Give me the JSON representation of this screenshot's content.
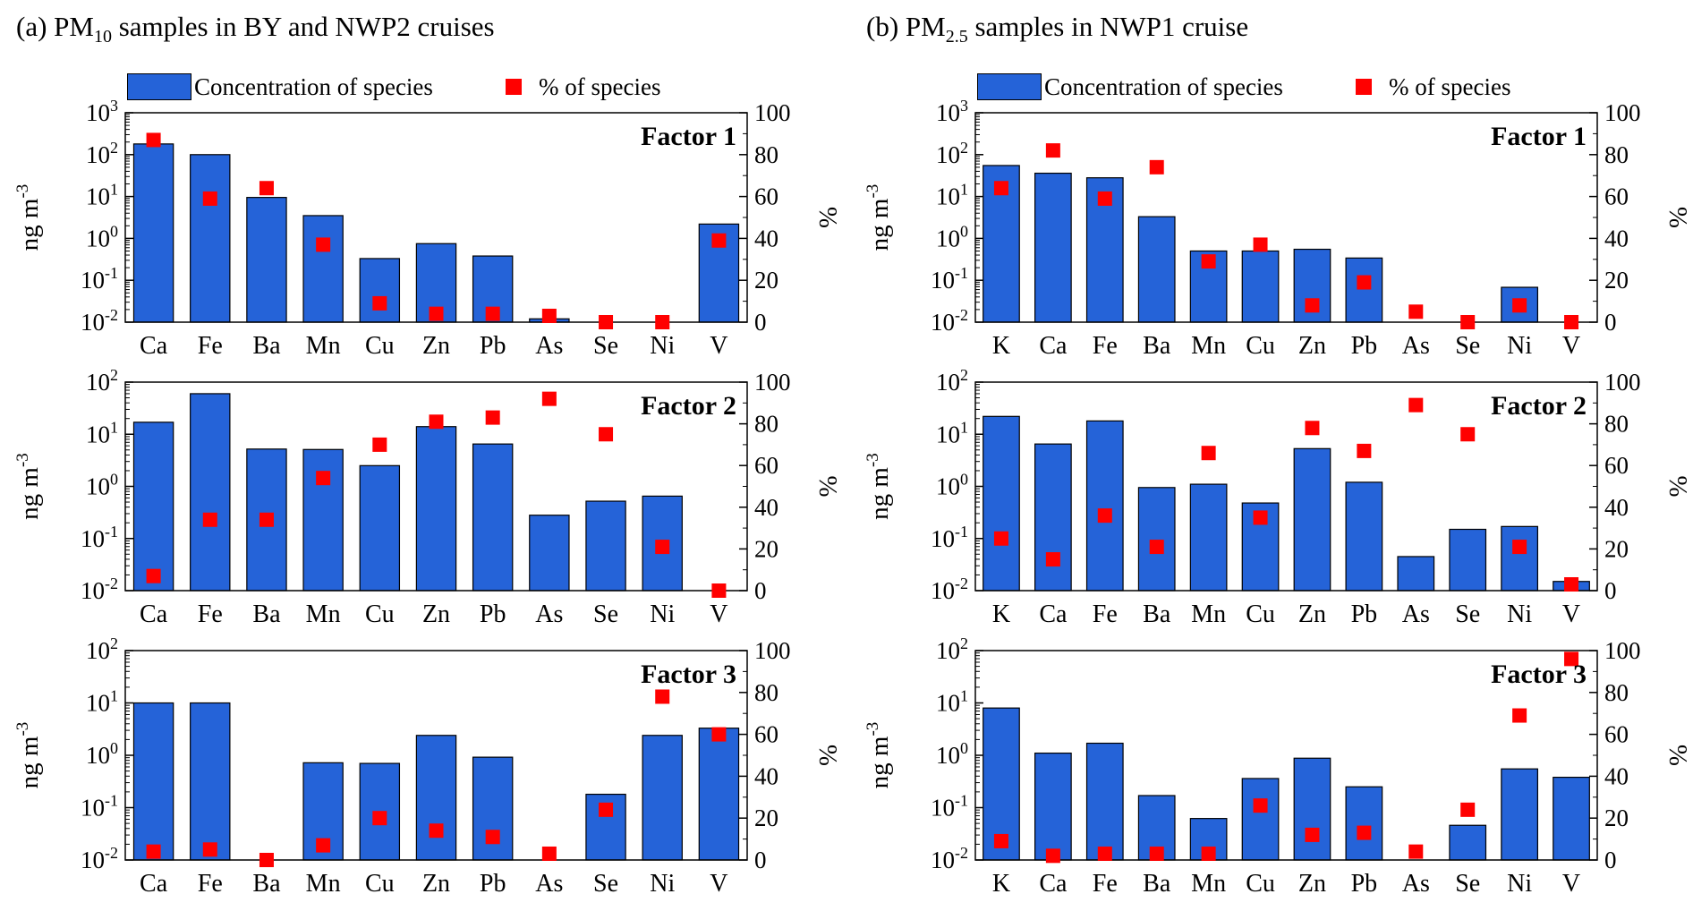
{
  "colors": {
    "bar": "#2563D8",
    "marker": "#FF0000",
    "axis": "#000000"
  },
  "chart_data": [
    {
      "type": "bar",
      "panel": "a",
      "panel_title_prefix": "(a) PM",
      "panel_title_sub": "10",
      "panel_title_suffix": " samples in BY and NWP2 cruises",
      "legend": {
        "bar_label": "Concentration of species",
        "marker_label": "% of species"
      },
      "factors": [
        {
          "title": "Factor 1",
          "categories": [
            "Ca",
            "Fe",
            "Ba",
            "Mn",
            "Cu",
            "Zn",
            "Pb",
            "As",
            "Se",
            "Ni",
            "V"
          ],
          "ylabel": "ng m-3",
          "y2label": "%",
          "ylim_log10": [
            -2,
            3
          ],
          "y2lim": [
            0,
            100
          ],
          "yticks": [
            "10^-2",
            "10^-1",
            "10^0",
            "10^1",
            "10^2",
            "10^3"
          ],
          "y2ticks": [
            0,
            20,
            40,
            60,
            80,
            100
          ],
          "series": [
            {
              "name": "Concentration of species",
              "type": "bar",
              "values": [
                180,
                100,
                9.5,
                3.5,
                0.33,
                0.75,
                0.38,
                0.012,
                0.01,
                0.01,
                2.2
              ]
            },
            {
              "name": "% of species",
              "type": "scatter",
              "values": [
                87,
                59,
                64,
                37,
                9,
                4,
                4,
                3,
                0,
                0,
                39
              ]
            }
          ]
        },
        {
          "title": "Factor 2",
          "categories": [
            "Ca",
            "Fe",
            "Ba",
            "Mn",
            "Cu",
            "Zn",
            "Pb",
            "As",
            "Se",
            "Ni",
            "V"
          ],
          "ylabel": "ng m-3",
          "y2label": "%",
          "ylim_log10": [
            -2,
            2
          ],
          "y2lim": [
            0,
            100
          ],
          "yticks": [
            "10^-2",
            "10^-1",
            "10^0",
            "10^1",
            "10^2"
          ],
          "y2ticks": [
            0,
            20,
            40,
            60,
            80,
            100
          ],
          "series": [
            {
              "name": "Concentration of species",
              "type": "bar",
              "values": [
                17,
                60,
                5.2,
                5.1,
                2.5,
                14,
                6.5,
                0.28,
                0.52,
                0.65,
                0.01
              ]
            },
            {
              "name": "% of species",
              "type": "scatter",
              "values": [
                7,
                34,
                34,
                54,
                70,
                81,
                83,
                92,
                75,
                21,
                0
              ]
            }
          ]
        },
        {
          "title": "Factor 3",
          "categories": [
            "Ca",
            "Fe",
            "Ba",
            "Mn",
            "Cu",
            "Zn",
            "Pb",
            "As",
            "Se",
            "Ni",
            "V"
          ],
          "ylabel": "ng m-3",
          "y2label": "%",
          "ylim_log10": [
            -2,
            2
          ],
          "y2lim": [
            0,
            100
          ],
          "yticks": [
            "10^-2",
            "10^-1",
            "10^0",
            "10^1",
            "10^2"
          ],
          "y2ticks": [
            0,
            20,
            40,
            60,
            80,
            100
          ],
          "series": [
            {
              "name": "Concentration of species",
              "type": "bar",
              "values": [
                10,
                10,
                0.01,
                0.72,
                0.7,
                2.4,
                0.92,
                0.01,
                0.18,
                2.4,
                3.3
              ]
            },
            {
              "name": "% of species",
              "type": "scatter",
              "values": [
                4,
                5,
                0,
                7,
                20,
                14,
                11,
                3,
                24,
                78,
                60
              ]
            }
          ]
        }
      ]
    },
    {
      "type": "bar",
      "panel": "b",
      "panel_title_prefix": "(b) PM",
      "panel_title_sub": "2.5",
      "panel_title_suffix": " samples in NWP1 cruise",
      "legend": {
        "bar_label": "Concentration of species",
        "marker_label": "% of species"
      },
      "factors": [
        {
          "title": "Factor 1",
          "categories": [
            "K",
            "Ca",
            "Fe",
            "Ba",
            "Mn",
            "Cu",
            "Zn",
            "Pb",
            "As",
            "Se",
            "Ni",
            "V"
          ],
          "ylabel": "ng m-3",
          "y2label": "%",
          "ylim_log10": [
            -2,
            3
          ],
          "y2lim": [
            0,
            100
          ],
          "yticks": [
            "10^-2",
            "10^-1",
            "10^0",
            "10^1",
            "10^2",
            "10^3"
          ],
          "y2ticks": [
            0,
            20,
            40,
            60,
            80,
            100
          ],
          "series": [
            {
              "name": "Concentration of species",
              "type": "bar",
              "values": [
                55,
                36,
                28,
                3.3,
                0.5,
                0.5,
                0.55,
                0.34,
                0.01,
                0.01,
                0.068,
                0.01
              ]
            },
            {
              "name": "% of species",
              "type": "scatter",
              "values": [
                64,
                82,
                59,
                74,
                29,
                37,
                8,
                19,
                5,
                0,
                8,
                0
              ]
            }
          ]
        },
        {
          "title": "Factor 2",
          "categories": [
            "K",
            "Ca",
            "Fe",
            "Ba",
            "Mn",
            "Cu",
            "Zn",
            "Pb",
            "As",
            "Se",
            "Ni",
            "V"
          ],
          "ylabel": "ng m-3",
          "y2label": "%",
          "ylim_log10": [
            -2,
            2
          ],
          "y2lim": [
            0,
            100
          ],
          "yticks": [
            "10^-2",
            "10^-1",
            "10^0",
            "10^1",
            "10^2"
          ],
          "y2ticks": [
            0,
            20,
            40,
            60,
            80,
            100
          ],
          "series": [
            {
              "name": "Concentration of species",
              "type": "bar",
              "values": [
                22,
                6.5,
                18,
                0.95,
                1.1,
                0.48,
                5.3,
                1.2,
                0.045,
                0.15,
                0.17,
                0.015
              ]
            },
            {
              "name": "% of species",
              "type": "scatter",
              "values": [
                25,
                15,
                36,
                21,
                66,
                35,
                78,
                67,
                89,
                75,
                21,
                3
              ]
            }
          ]
        },
        {
          "title": "Factor 3",
          "categories": [
            "K",
            "Ca",
            "Fe",
            "Ba",
            "Mn",
            "Cu",
            "Zn",
            "Pb",
            "As",
            "Se",
            "Ni",
            "V"
          ],
          "ylabel": "ng m-3",
          "y2label": "%",
          "ylim_log10": [
            -2,
            2
          ],
          "y2lim": [
            0,
            100
          ],
          "yticks": [
            "10^-2",
            "10^-1",
            "10^0",
            "10^1",
            "10^2"
          ],
          "y2ticks": [
            0,
            20,
            40,
            60,
            80,
            100
          ],
          "series": [
            {
              "name": "Concentration of species",
              "type": "bar",
              "values": [
                8,
                1.1,
                1.7,
                0.17,
                0.062,
                0.36,
                0.88,
                0.25,
                0.01,
                0.046,
                0.55,
                0.38
              ]
            },
            {
              "name": "% of species",
              "type": "scatter",
              "values": [
                9,
                2,
                3,
                3,
                3,
                26,
                12,
                13,
                4,
                24,
                69,
                96
              ]
            }
          ]
        }
      ]
    }
  ]
}
